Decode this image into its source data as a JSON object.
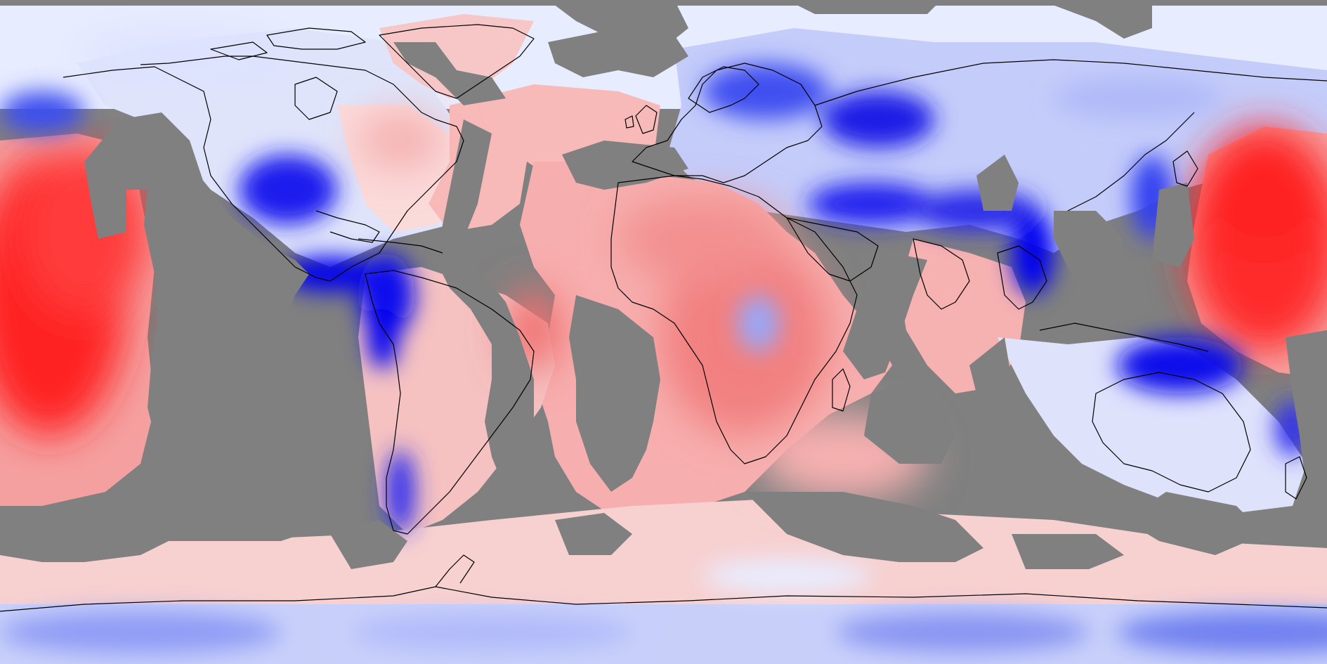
{
  "map": {
    "projection": "equirectangular",
    "missing_color": "#808080",
    "positive_color": "#ff0000",
    "negative_color": "#0000ff",
    "neutral_color": "#ffffff",
    "coastline_color": "#000000"
  }
}
